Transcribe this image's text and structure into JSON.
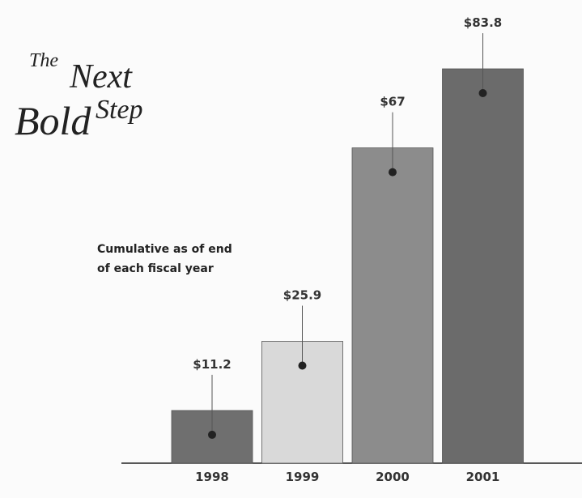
{
  "chart_data": {
    "type": "bar",
    "title": [
      "The",
      "Next",
      "Bold",
      "Step"
    ],
    "subtitle": [
      "Cumulative as of end",
      "of each fiscal year"
    ],
    "categories": [
      "1998",
      "1999",
      "2000",
      "2001"
    ],
    "values": [
      11.2,
      25.9,
      67,
      83.8
    ],
    "value_labels": [
      "$11.2",
      "$25.9",
      "$67",
      "$83.8"
    ],
    "colors": [
      "#6f6f6f",
      "#d9d9d9",
      "#8c8c8c",
      "#6b6b6b"
    ]
  }
}
